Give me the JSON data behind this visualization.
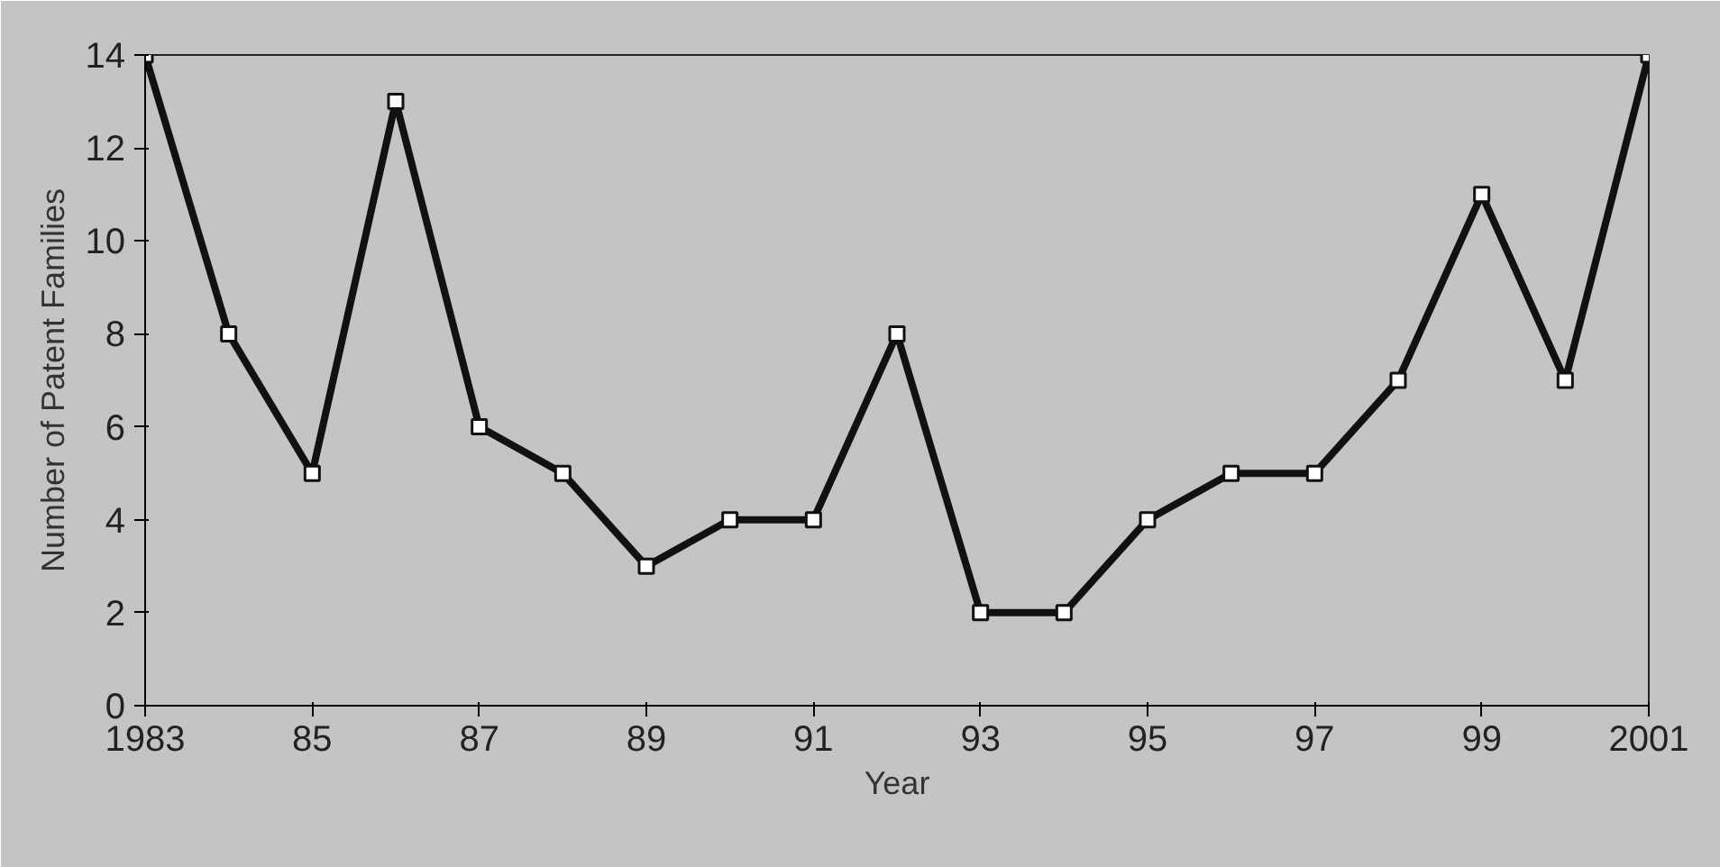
{
  "chart_data": {
    "type": "line",
    "xlabel": "Year",
    "ylabel": "Number of Patent Families",
    "x": [
      1983,
      1984,
      1985,
      1986,
      1987,
      1988,
      1989,
      1990,
      1991,
      1992,
      1993,
      1994,
      1995,
      1996,
      1997,
      1998,
      1999,
      2000,
      2001
    ],
    "series": [
      {
        "color": "#111111",
        "values": [
          14,
          8,
          5,
          13,
          6,
          5,
          3,
          4,
          4,
          8,
          2,
          2,
          4,
          5,
          5,
          7,
          11,
          7,
          14
        ]
      }
    ],
    "xlim": [
      1983,
      2001
    ],
    "xticks": [
      1983,
      {
        "value": 1985,
        "label": "85"
      },
      {
        "value": 1987,
        "label": "87"
      },
      {
        "value": 1989,
        "label": "89"
      },
      {
        "value": 1991,
        "label": "91"
      },
      {
        "value": 1993,
        "label": "93"
      },
      {
        "value": 1995,
        "label": "95"
      },
      {
        "value": 1997,
        "label": "97"
      },
      {
        "value": 1999,
        "label": "99"
      },
      2001
    ],
    "ylim": [
      0,
      14
    ],
    "yticks": [
      0,
      2,
      4,
      6,
      8,
      10,
      12,
      14
    ],
    "grid": false,
    "marker": "square",
    "line_style": "solid"
  }
}
